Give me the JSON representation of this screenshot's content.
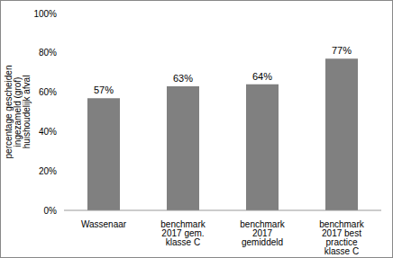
{
  "chart_data": {
    "type": "bar",
    "y_label": "percentage gescheiden ingezameld (grof) huishoudelijk afval",
    "categories": [
      "Wassenaar",
      "benchmark 2017 gem. klasse C",
      "benchmark 2017 gemiddeld",
      "benchmark 2017 best practice klasse C"
    ],
    "values": [
      57,
      63,
      64,
      77
    ],
    "value_labels": [
      "57%",
      "63%",
      "64%",
      "77%"
    ],
    "data_labels": true,
    "color": "#808080",
    "ylim": [
      0,
      100
    ],
    "yticks": [
      {
        "value": 0,
        "label": "0%"
      },
      {
        "value": 20,
        "label": "20%"
      },
      {
        "value": 40,
        "label": "40%"
      },
      {
        "value": 60,
        "label": "60%"
      },
      {
        "value": 80,
        "label": "80%"
      },
      {
        "value": 100,
        "label": "100%"
      }
    ],
    "grid": false
  }
}
